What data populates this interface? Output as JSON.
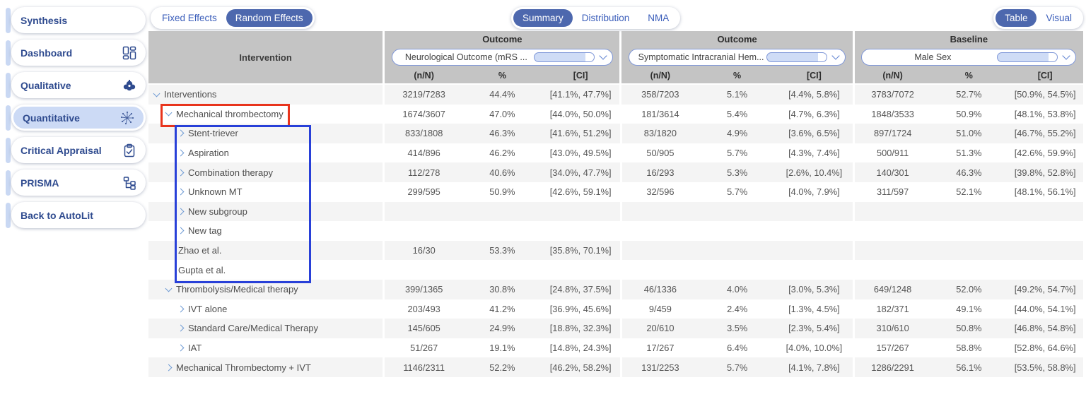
{
  "sidebar": {
    "items": [
      {
        "label": "Synthesis",
        "icon": "none",
        "selected": false
      },
      {
        "label": "Dashboard",
        "icon": "dashboard-grid-icon",
        "selected": false
      },
      {
        "label": "Qualitative",
        "icon": "word-cloud-icon",
        "selected": false
      },
      {
        "label": "Quantitative",
        "icon": "network-plot-icon",
        "selected": true
      },
      {
        "label": "Critical Appraisal",
        "icon": "clipboard-check-icon",
        "selected": false
      },
      {
        "label": "PRISMA",
        "icon": "flowchart-icon",
        "selected": false
      },
      {
        "label": "Back to AutoLit",
        "icon": "none",
        "selected": false
      }
    ]
  },
  "toolbar": {
    "effects_toggle": {
      "options": [
        "Fixed Effects",
        "Random Effects"
      ],
      "selected": "Random Effects"
    },
    "view_tabs": {
      "options": [
        "Summary",
        "Distribution",
        "NMA"
      ],
      "selected": "Summary"
    },
    "display_toggle": {
      "options": [
        "Table",
        "Visual"
      ],
      "selected": "Table"
    }
  },
  "table": {
    "intervention_header": "Intervention",
    "subheaders": [
      "(n/N)",
      "%",
      "[CI]"
    ],
    "groups": [
      {
        "label": "Outcome",
        "dropdown": "Neurological Outcome (mRS ..."
      },
      {
        "label": "Outcome",
        "dropdown": "Symptomatic Intracranial Hem..."
      },
      {
        "label": "Baseline",
        "dropdown": "Male Sex"
      }
    ],
    "rows": [
      {
        "label": "Interventions",
        "level": 0,
        "chevron": "down",
        "values": [
          "3219/7283",
          "44.4%",
          "[41.1%, 47.7%]",
          "358/7203",
          "5.1%",
          "[4.4%, 5.8%]",
          "3783/7072",
          "52.7%",
          "[50.9%, 54.5%]"
        ]
      },
      {
        "label": "Mechanical thrombectomy",
        "level": 1,
        "chevron": "down",
        "values": [
          "1674/3607",
          "47.0%",
          "[44.0%, 50.0%]",
          "181/3614",
          "5.4%",
          "[4.7%, 6.3%]",
          "1848/3533",
          "50.9%",
          "[48.1%, 53.8%]"
        ]
      },
      {
        "label": "Stent-triever",
        "level": 2,
        "chevron": "right",
        "values": [
          "833/1808",
          "46.3%",
          "[41.6%, 51.2%]",
          "83/1820",
          "4.9%",
          "[3.6%, 6.5%]",
          "897/1724",
          "51.0%",
          "[46.7%, 55.2%]"
        ]
      },
      {
        "label": "Aspiration",
        "level": 2,
        "chevron": "right",
        "values": [
          "414/896",
          "46.2%",
          "[43.0%, 49.5%]",
          "50/905",
          "5.7%",
          "[4.3%, 7.4%]",
          "500/911",
          "51.3%",
          "[42.6%, 59.9%]"
        ]
      },
      {
        "label": "Combination therapy",
        "level": 2,
        "chevron": "right",
        "values": [
          "112/278",
          "40.6%",
          "[34.0%, 47.7%]",
          "16/293",
          "5.3%",
          "[2.6%, 10.4%]",
          "140/301",
          "46.3%",
          "[39.8%, 52.8%]"
        ]
      },
      {
        "label": "Unknown MT",
        "level": 2,
        "chevron": "right",
        "values": [
          "299/595",
          "50.9%",
          "[42.6%, 59.1%]",
          "32/596",
          "5.7%",
          "[4.0%, 7.9%]",
          "311/597",
          "52.1%",
          "[48.1%, 56.1%]"
        ]
      },
      {
        "label": "New subgroup",
        "level": 2,
        "chevron": "right",
        "values": [
          "",
          "",
          "",
          "",
          "",
          "",
          "",
          "",
          ""
        ]
      },
      {
        "label": "New tag",
        "level": 2,
        "chevron": "right",
        "values": [
          "",
          "",
          "",
          "",
          "",
          "",
          "",
          "",
          ""
        ]
      },
      {
        "label": "Zhao et al.",
        "level": 2,
        "chevron": "none",
        "values": [
          "16/30",
          "53.3%",
          "[35.8%, 70.1%]",
          "",
          "",
          "",
          "",
          "",
          ""
        ]
      },
      {
        "label": "Gupta et al.",
        "level": 2,
        "chevron": "none",
        "values": [
          "",
          "",
          "",
          "",
          "",
          "",
          "",
          "",
          ""
        ]
      },
      {
        "label": "Thrombolysis/Medical therapy",
        "level": 1,
        "chevron": "down",
        "values": [
          "399/1365",
          "30.8%",
          "[24.8%, 37.5%]",
          "46/1336",
          "4.0%",
          "[3.0%, 5.3%]",
          "649/1248",
          "52.0%",
          "[49.2%, 54.7%]"
        ]
      },
      {
        "label": "IVT alone",
        "level": 2,
        "chevron": "right",
        "values": [
          "203/493",
          "41.2%",
          "[36.9%, 45.6%]",
          "9/459",
          "2.4%",
          "[1.3%, 4.5%]",
          "182/371",
          "49.1%",
          "[44.0%, 54.1%]"
        ]
      },
      {
        "label": "Standard Care/Medical Therapy",
        "level": 2,
        "chevron": "right",
        "values": [
          "145/605",
          "24.9%",
          "[18.8%, 32.3%]",
          "20/610",
          "3.5%",
          "[2.3%, 5.4%]",
          "310/610",
          "50.8%",
          "[46.8%, 54.8%]"
        ]
      },
      {
        "label": "IAT",
        "level": 2,
        "chevron": "right",
        "values": [
          "51/267",
          "19.1%",
          "[14.8%, 24.3%]",
          "17/267",
          "6.4%",
          "[4.0%, 10.0%]",
          "157/267",
          "58.8%",
          "[52.8%, 64.6%]"
        ]
      },
      {
        "label": "Mechanical Thrombectomy + IVT",
        "level": 1,
        "chevron": "right",
        "values": [
          "1146/2311",
          "52.2%",
          "[46.2%, 58.2%]",
          "131/2253",
          "5.7%",
          "[4.1%, 7.8%]",
          "1286/2291",
          "56.1%",
          "[53.5%, 58.8%]"
        ]
      }
    ]
  },
  "annotations": {
    "red_box_color": "#e8341c",
    "blue_box_color": "#2840d8"
  },
  "colors": {
    "accent_blue": "#4d68ae",
    "link_blue": "#3a5dba",
    "sidebar_navy": "#2f4b8f",
    "sidebar_highlight": "#ccdaf5",
    "header_gray": "#c4c4c4",
    "stripe_gray": "#f4f4f4",
    "chevron_blue": "#6f9bd4"
  }
}
